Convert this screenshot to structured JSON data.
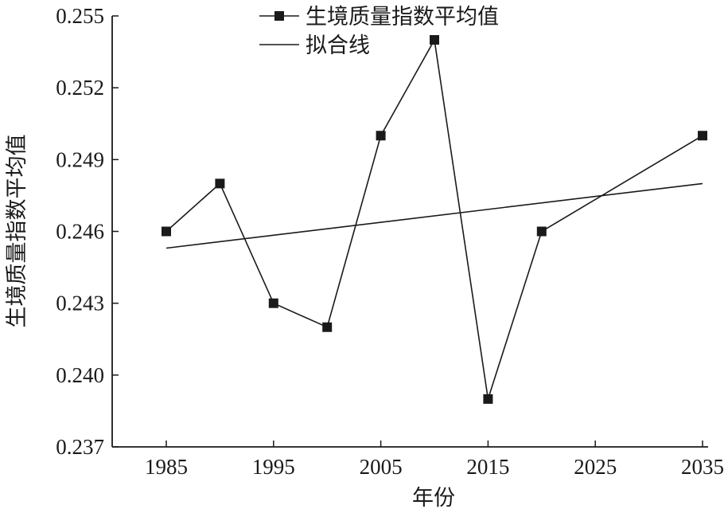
{
  "chart_data": {
    "type": "line",
    "title": "",
    "xlabel": "年份",
    "ylabel": "生境质量指数平均值",
    "xlim": [
      1980,
      2035
    ],
    "ylim": [
      0.237,
      0.255
    ],
    "x_ticks": [
      1985,
      1995,
      2005,
      2015,
      2025,
      2035
    ],
    "y_ticks": [
      "0.237",
      "0.240",
      "0.243",
      "0.246",
      "0.249",
      "0.252",
      "0.255"
    ],
    "grid": false,
    "legend_position": "top",
    "series": [
      {
        "name": "生境质量指数平均值",
        "marker": "square",
        "x": [
          1985,
          1990,
          1995,
          2000,
          2005,
          2010,
          2015,
          2020,
          2035
        ],
        "y": [
          0.246,
          0.248,
          0.243,
          0.242,
          0.25,
          0.254,
          0.239,
          0.246,
          0.25
        ]
      },
      {
        "name": "拟合线",
        "marker": "none",
        "x": [
          1985,
          2035
        ],
        "y": [
          0.2453,
          0.248
        ]
      }
    ],
    "colors": {
      "line": "#1a1a1a",
      "marker": "#1a1a1a",
      "background": "#ffffff"
    }
  }
}
